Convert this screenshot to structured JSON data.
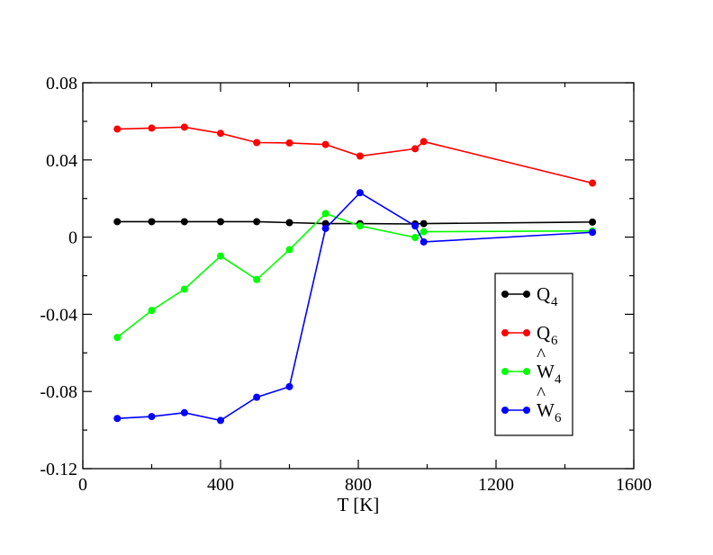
{
  "chart_data": {
    "type": "line",
    "title": "",
    "xlabel": "T [K]",
    "ylabel": "",
    "xlim": [
      0,
      1600
    ],
    "ylim": [
      -0.12,
      0.08
    ],
    "xticks": [
      0,
      400,
      800,
      1200,
      1600
    ],
    "xtick_labels": [
      "0",
      "400",
      "800",
      "1200",
      "1600"
    ],
    "yticks": [
      -0.12,
      -0.08,
      -0.04,
      0,
      0.04,
      0.08
    ],
    "ytick_labels": [
      "-0.12",
      "-0.08",
      "-0.04",
      "0",
      "0.04",
      "0.08"
    ],
    "grid": false,
    "legend_position": "lower-right",
    "series": [
      {
        "name": "Q4",
        "base": "Q",
        "sub": "4",
        "hat": false,
        "color": "#000000",
        "points": [
          [
            100,
            0.008
          ],
          [
            200,
            0.008
          ],
          [
            295,
            0.008
          ],
          [
            400,
            0.008
          ],
          [
            505,
            0.008
          ],
          [
            600,
            0.0075
          ],
          [
            705,
            0.007
          ],
          [
            805,
            0.007
          ],
          [
            965,
            0.0068
          ],
          [
            990,
            0.007
          ],
          [
            1480,
            0.0078
          ]
        ]
      },
      {
        "name": "Q6",
        "base": "Q",
        "sub": "6",
        "hat": false,
        "color": "#ff0000",
        "points": [
          [
            100,
            0.056
          ],
          [
            200,
            0.0565
          ],
          [
            295,
            0.057
          ],
          [
            400,
            0.0538
          ],
          [
            505,
            0.049
          ],
          [
            600,
            0.0488
          ],
          [
            705,
            0.048
          ],
          [
            805,
            0.042
          ],
          [
            965,
            0.0458
          ],
          [
            990,
            0.0495
          ],
          [
            1480,
            0.028
          ]
        ]
      },
      {
        "name": "Ŵ4",
        "base": "W",
        "sub": "4",
        "hat": true,
        "color": "#00ff00",
        "points": [
          [
            100,
            -0.052
          ],
          [
            200,
            -0.038
          ],
          [
            295,
            -0.027
          ],
          [
            400,
            -0.0098
          ],
          [
            505,
            -0.022
          ],
          [
            600,
            -0.0065
          ],
          [
            705,
            0.0122
          ],
          [
            805,
            0.0058
          ],
          [
            965,
            -0.0002
          ],
          [
            990,
            0.0028
          ],
          [
            1480,
            0.0032
          ]
        ]
      },
      {
        "name": "Ŵ6",
        "base": "W",
        "sub": "6",
        "hat": true,
        "color": "#0000ff",
        "points": [
          [
            100,
            -0.094
          ],
          [
            200,
            -0.093
          ],
          [
            295,
            -0.091
          ],
          [
            400,
            -0.095
          ],
          [
            505,
            -0.083
          ],
          [
            600,
            -0.0775
          ],
          [
            705,
            0.0045
          ],
          [
            805,
            0.023
          ],
          [
            965,
            0.0058
          ],
          [
            990,
            -0.0025
          ],
          [
            1480,
            0.0025
          ]
        ]
      }
    ]
  }
}
